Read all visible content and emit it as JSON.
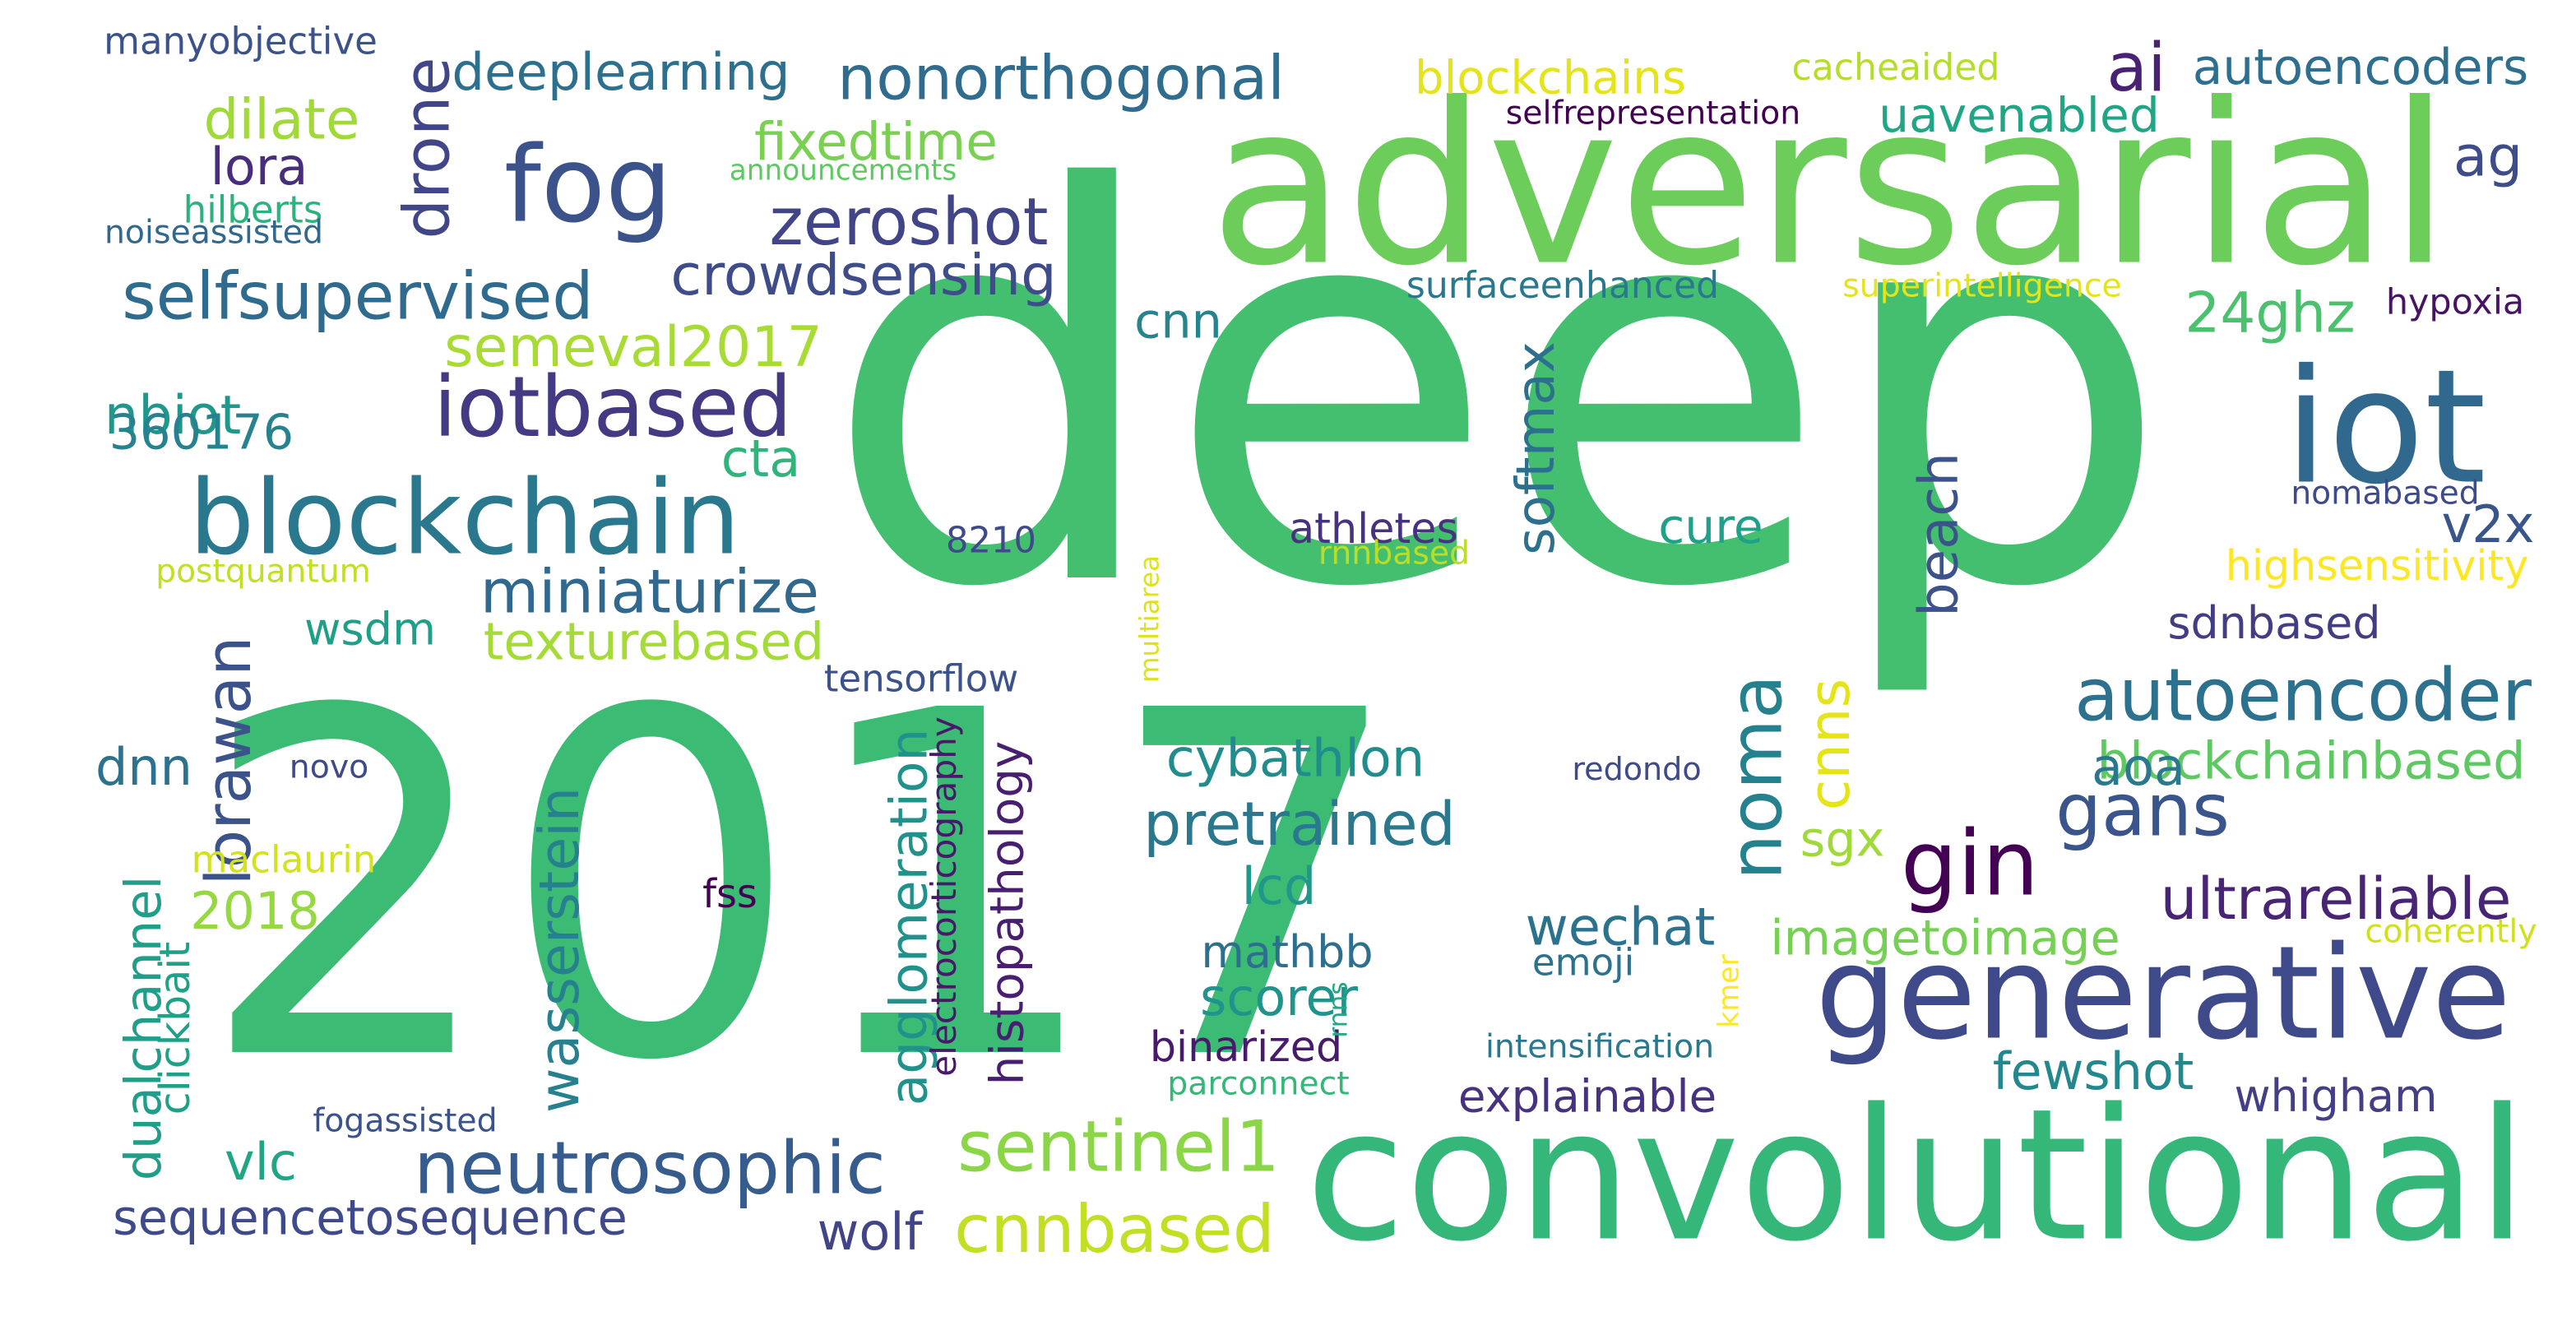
{
  "wordcloud": {
    "words": [
      {
        "text": "deep",
        "color": "#44bf70"
      },
      {
        "text": "2017",
        "color": "#3cbb75"
      },
      {
        "text": "adversarial",
        "color": "#6ccd5a"
      },
      {
        "text": "convolutional",
        "color": "#35b779"
      },
      {
        "text": "generative",
        "color": "#3e4a89"
      },
      {
        "text": "blockchain",
        "color": "#2a788e"
      },
      {
        "text": "iot",
        "color": "#31688e"
      },
      {
        "text": "fog",
        "color": "#3b528b"
      },
      {
        "text": "neutrosophic",
        "color": "#365c8d"
      },
      {
        "text": "iotbased",
        "color": "#443983"
      },
      {
        "text": "autoencoder",
        "color": "#2c728e"
      },
      {
        "text": "nonorthogonal",
        "color": "#2f6c8e"
      },
      {
        "text": "noma",
        "color": "#26818e"
      },
      {
        "text": "gin",
        "color": "#440154"
      },
      {
        "text": "gans",
        "color": "#3a548c"
      },
      {
        "text": "deeplearning",
        "color": "#2d708e"
      },
      {
        "text": "selfsupervised",
        "color": "#2f6b8e"
      },
      {
        "text": "drone",
        "color": "#404688"
      },
      {
        "text": "cnnbased",
        "color": "#c2df23"
      },
      {
        "text": "sentinel1",
        "color": "#8bd646"
      },
      {
        "text": "blockchains",
        "color": "#e5e419"
      },
      {
        "text": "autoencoders",
        "color": "#2e6e8e"
      },
      {
        "text": "semeval2017",
        "color": "#a8db34"
      },
      {
        "text": "miniaturize",
        "color": "#31688e"
      },
      {
        "text": "texturebased",
        "color": "#a5db36"
      },
      {
        "text": "zeroshot",
        "color": "#414487"
      },
      {
        "text": "crowdsensing",
        "color": "#3e4c8a"
      },
      {
        "text": "blockchainbased",
        "color": "#5ec962"
      },
      {
        "text": "ultrareliable",
        "color": "#482475"
      },
      {
        "text": "agglomeration",
        "color": "#21918c"
      },
      {
        "text": "pretrained",
        "color": "#2a788e"
      },
      {
        "text": "cybathlon",
        "color": "#228c8d"
      },
      {
        "text": "explainable",
        "color": "#46327e"
      },
      {
        "text": "fixedtime",
        "color": "#7ad151"
      },
      {
        "text": "dualchannel",
        "color": "#1f9e89"
      },
      {
        "text": "sequencetosequence",
        "color": "#3e4a89"
      },
      {
        "text": "wasserstein",
        "color": "#27808e"
      },
      {
        "text": "uavenabled",
        "color": "#21a685"
      },
      {
        "text": "imagetoimage",
        "color": "#75d054"
      },
      {
        "text": "wechat",
        "color": "#2c728e"
      },
      {
        "text": "lorawan",
        "color": "#3b528b"
      },
      {
        "text": "dilate",
        "color": "#a0da39"
      },
      {
        "text": "ai",
        "color": "#482173"
      },
      {
        "text": "24ghz",
        "color": "#4ac16d"
      },
      {
        "text": "nbiot",
        "color": "#1f988b"
      },
      {
        "text": "360176",
        "color": "#26828e"
      },
      {
        "text": "sdnbased",
        "color": "#433d84"
      },
      {
        "text": "softmax",
        "color": "#2d708e"
      },
      {
        "text": "beach",
        "color": "#3b528b"
      },
      {
        "text": "cure",
        "color": "#1fa088"
      },
      {
        "text": "cnn",
        "color": "#25848e"
      },
      {
        "text": "lora",
        "color": "#472d7b"
      },
      {
        "text": "wsdm",
        "color": "#1f9f88"
      },
      {
        "text": "cta",
        "color": "#2fb47c"
      },
      {
        "text": "cnns",
        "color": "#e5e419"
      },
      {
        "text": "sgx",
        "color": "#a0da39"
      },
      {
        "text": "v2x",
        "color": "#39568c"
      },
      {
        "text": "aoa",
        "color": "#2a788e"
      },
      {
        "text": "ag",
        "color": "#3e4c8a"
      },
      {
        "text": "dnn",
        "color": "#2c728e"
      },
      {
        "text": "2018",
        "color": "#95d840"
      },
      {
        "text": "whigham",
        "color": "#433e85"
      },
      {
        "text": "fewshot",
        "color": "#23888e"
      },
      {
        "text": "lcd",
        "color": "#1f978b"
      },
      {
        "text": "mathbb",
        "color": "#2e6e8e"
      },
      {
        "text": "scorer",
        "color": "#1f948c"
      },
      {
        "text": "vlc",
        "color": "#21a685"
      },
      {
        "text": "wolf",
        "color": "#414487"
      },
      {
        "text": "histopathology",
        "color": "#481f70"
      },
      {
        "text": "electrocorticography",
        "color": "#48196b"
      },
      {
        "text": "multiarea",
        "color": "#dde318"
      },
      {
        "text": "tensorflow",
        "color": "#3b528b"
      },
      {
        "text": "postquantum",
        "color": "#c2df23"
      },
      {
        "text": "8210",
        "color": "#3e4a89"
      },
      {
        "text": "athletes",
        "color": "#46327e"
      },
      {
        "text": "rnnbased",
        "color": "#bade28"
      },
      {
        "text": "surfaceenhanced",
        "color": "#2a788e"
      },
      {
        "text": "superintelligence",
        "color": "#e5e419"
      },
      {
        "text": "selfrepresentation",
        "color": "#440154"
      },
      {
        "text": "cacheaided",
        "color": "#b5de2b"
      },
      {
        "text": "hypoxia",
        "color": "#471365"
      },
      {
        "text": "nomabased",
        "color": "#3e4a89"
      },
      {
        "text": "highsensitivity",
        "color": "#fde725"
      },
      {
        "text": "coherently",
        "color": "#d0e11c"
      },
      {
        "text": "redondo",
        "color": "#3e4a89"
      },
      {
        "text": "kmer",
        "color": "#fde725"
      },
      {
        "text": "emoji",
        "color": "#2c728e"
      },
      {
        "text": "intensification",
        "color": "#2a788e"
      },
      {
        "text": "parconnect",
        "color": "#35b779"
      },
      {
        "text": "binarized",
        "color": "#481a6c"
      },
      {
        "text": "rnns",
        "color": "#22a884"
      },
      {
        "text": "fss",
        "color": "#440154"
      },
      {
        "text": "novo",
        "color": "#3e4a89"
      },
      {
        "text": "maclaurin",
        "color": "#d2e21b"
      },
      {
        "text": "clickbait",
        "color": "#1fa187"
      },
      {
        "text": "fogassisted",
        "color": "#3b528b"
      },
      {
        "text": "manyobjective",
        "color": "#3b528b"
      },
      {
        "text": "announcements",
        "color": "#5ec962"
      },
      {
        "text": "hilberts",
        "color": "#2db27d"
      },
      {
        "text": "noiseassisted",
        "color": "#31688e"
      }
    ]
  }
}
